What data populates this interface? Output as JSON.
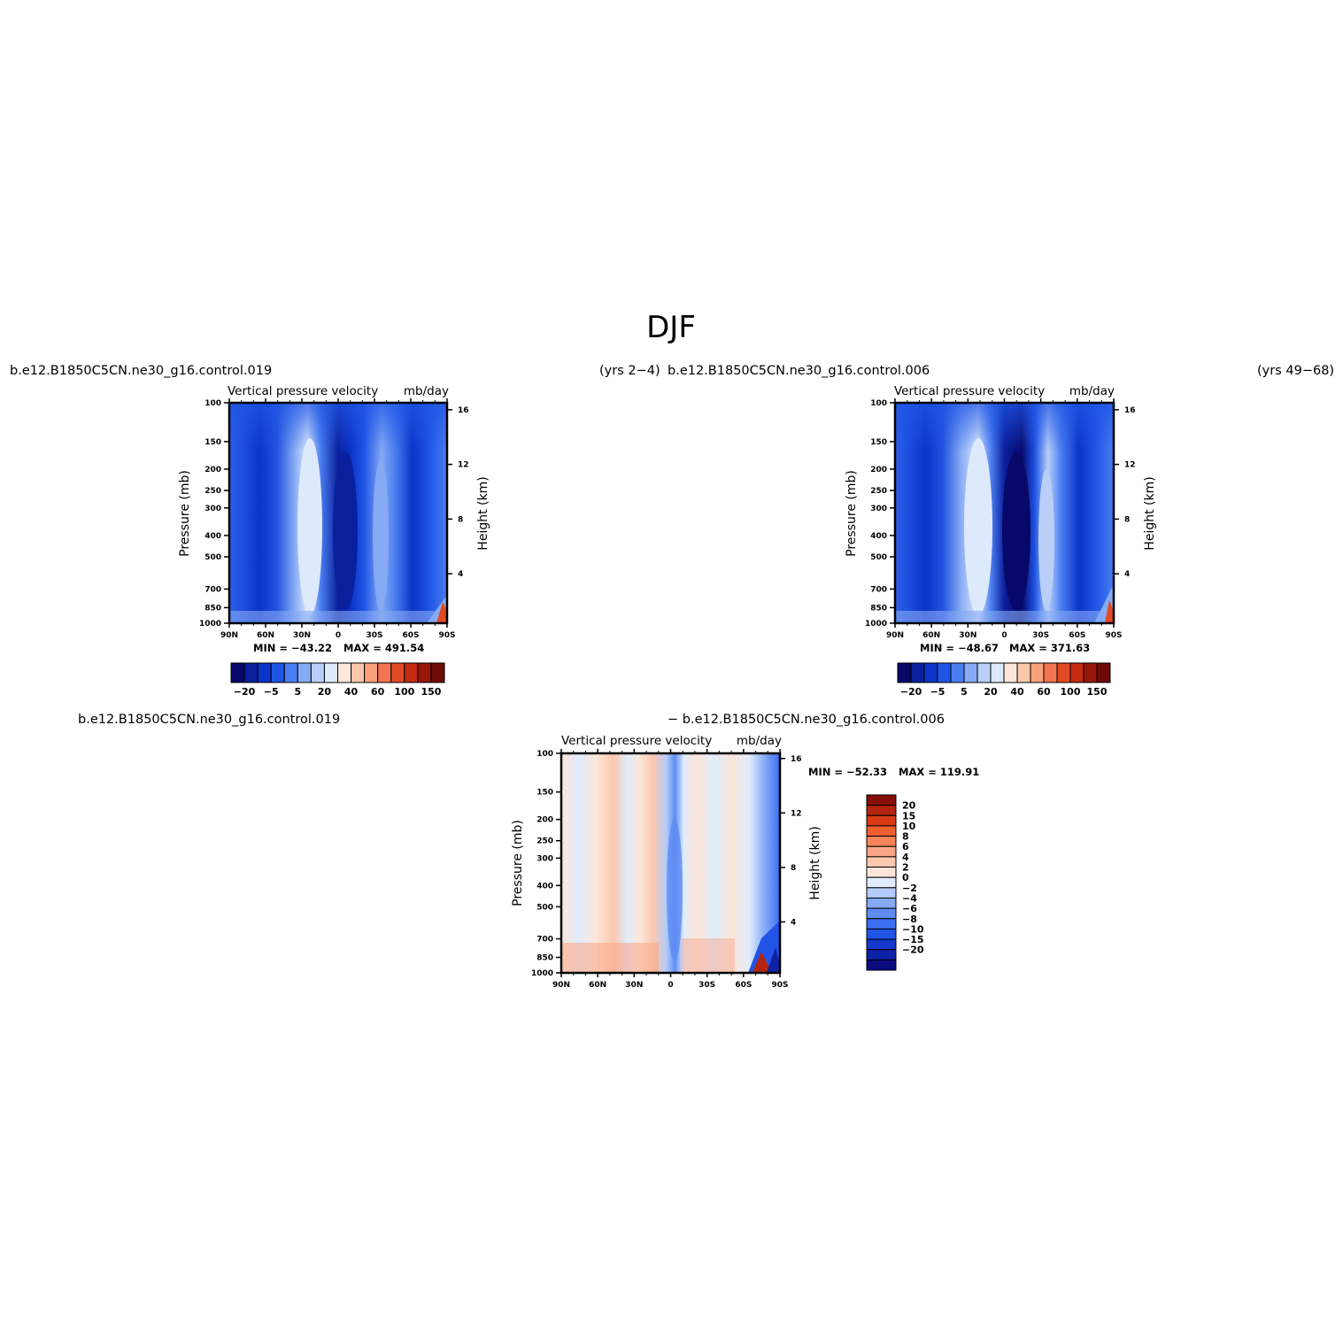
{
  "figure_title": "DJF",
  "chart_data": [
    {
      "type": "heatmap",
      "case_name": "b.e12.B1850C5CN.ne30_g16.control.019",
      "years": "(yrs 2−4)",
      "title": "Vertical pressure velocity",
      "units": "mb/day",
      "xlabel": "",
      "ylabel": "Pressure (mb)",
      "ylabel_right": "Height (km)",
      "x_ticks": [
        "90N",
        "60N",
        "30N",
        "0",
        "30S",
        "60S",
        "90S"
      ],
      "x_range": [
        90,
        -90
      ],
      "y_ticks": [
        100,
        150,
        200,
        250,
        300,
        400,
        500,
        700,
        850,
        1000
      ],
      "y_range": [
        100,
        1000
      ],
      "y_scale": "log",
      "y_right_ticks": [
        16,
        12,
        8,
        4
      ],
      "min_label": "MIN = −43.22",
      "max_label": "MAX = 491.54",
      "colorbar": {
        "orientation": "horizontal",
        "labels": [
          "−20",
          "−5",
          "5",
          "20",
          "40",
          "60",
          "100",
          "150"
        ]
      }
    },
    {
      "type": "heatmap",
      "case_name": "b.e12.B1850C5CN.ne30_g16.control.006",
      "years": "(yrs 49−68)",
      "title": "Vertical pressure velocity",
      "units": "mb/day",
      "xlabel": "",
      "ylabel": "Pressure (mb)",
      "ylabel_right": "Height (km)",
      "x_ticks": [
        "90N",
        "60N",
        "30N",
        "0",
        "30S",
        "60S",
        "90S"
      ],
      "x_range": [
        90,
        -90
      ],
      "y_ticks": [
        100,
        150,
        200,
        250,
        300,
        400,
        500,
        700,
        850,
        1000
      ],
      "y_range": [
        100,
        1000
      ],
      "y_scale": "log",
      "y_right_ticks": [
        16,
        12,
        8,
        4
      ],
      "min_label": "MIN = −48.67",
      "max_label": "MAX = 371.63",
      "colorbar": {
        "orientation": "horizontal",
        "labels": [
          "−20",
          "−5",
          "5",
          "20",
          "40",
          "60",
          "100",
          "150"
        ]
      }
    },
    {
      "type": "heatmap",
      "case_name": "b.e12.B1850C5CN.ne30_g16.control.019",
      "case_name_2": "− b.e12.B1850C5CN.ne30_g16.control.006",
      "title": "Vertical pressure velocity",
      "units": "mb/day",
      "xlabel": "",
      "ylabel": "Pressure (mb)",
      "ylabel_right": "Height (km)",
      "x_ticks": [
        "90N",
        "60N",
        "30N",
        "0",
        "30S",
        "60S",
        "90S"
      ],
      "x_range": [
        90,
        -90
      ],
      "y_ticks": [
        100,
        150,
        200,
        250,
        300,
        400,
        500,
        700,
        850,
        1000
      ],
      "y_range": [
        100,
        1000
      ],
      "y_scale": "log",
      "y_right_ticks": [
        16,
        12,
        8,
        4
      ],
      "min_label": "MIN = −52.33",
      "max_label": "MAX = 119.91",
      "colorbar": {
        "orientation": "vertical",
        "labels": [
          "20",
          "15",
          "10",
          "8",
          "6",
          "4",
          "2",
          "0",
          "−2",
          "−4",
          "−6",
          "−8",
          "−10",
          "−15",
          "−20"
        ]
      }
    }
  ],
  "colors": {
    "abs_scale": [
      "#08086b",
      "#0a1f9c",
      "#0b34c9",
      "#1f55e6",
      "#4a7ef0",
      "#86aaf4",
      "#b9cff8",
      "#dde9fc",
      "#fde7dc",
      "#fbc7ad",
      "#f9a07c",
      "#f4744f",
      "#e24a26",
      "#c42b12",
      "#98160a",
      "#6e0905"
    ],
    "diff_scale": [
      "#0b0b80",
      "#0d22a6",
      "#1338cc",
      "#2154e6",
      "#3b6ef0",
      "#5e8cf3",
      "#86aaf6",
      "#b4ccfa",
      "#e0ecfd",
      "#fde6d9",
      "#fbc8ae",
      "#f9a585",
      "#f78459",
      "#f0602f",
      "#d83b16",
      "#b52410",
      "#860d08"
    ]
  }
}
